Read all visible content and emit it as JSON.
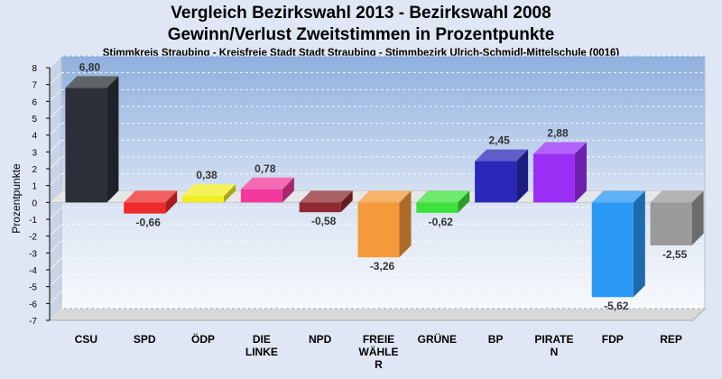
{
  "chart_data": {
    "type": "bar",
    "title": "Vergleich Bezirkswahl 2013 - Bezirkswahl 2008",
    "subtitle": "Gewinn/Verlust Zweitstimmen in Prozentpunkte",
    "caption": "Stimmkreis Straubing - Kreisfreie Stadt Stadt Straubing - Stimmbezirk Ulrich-Schmidl-Mittelschule (0016)",
    "xlabel": "",
    "ylabel": "Prozentpunkte",
    "ylim": [
      -7,
      8
    ],
    "yticks": [
      "8",
      "7",
      "6",
      "5",
      "4",
      "3",
      "2",
      "1",
      "0",
      "-1",
      "-2",
      "-3",
      "-4",
      "-5",
      "-6",
      "-7"
    ],
    "grid": true,
    "categories": [
      [
        "CSU"
      ],
      [
        "SPD"
      ],
      [
        "ÖDP"
      ],
      [
        "DIE",
        "LINKE"
      ],
      [
        "NPD"
      ],
      [
        "FREIE",
        "WÄHLE",
        "R"
      ],
      [
        "GRÜNE"
      ],
      [
        "BP"
      ],
      [
        "PIRATE",
        "N"
      ],
      [
        "FDP"
      ],
      [
        "REP"
      ]
    ],
    "values": [
      6.8,
      -0.66,
      0.38,
      0.78,
      -0.58,
      -3.26,
      -0.62,
      2.45,
      2.88,
      -5.62,
      -2.55
    ],
    "labels": [
      "6,80",
      "-0,66",
      "0,38",
      "0,78",
      "-0,58",
      "-3,26",
      "-0,62",
      "2,45",
      "2,88",
      "-5,62",
      "-2,55"
    ],
    "colors": [
      "#2b2f38",
      "#ee2a2a",
      "#f2ee22",
      "#f2389a",
      "#8e2a30",
      "#f59a3a",
      "#3ce23a",
      "#2a28b8",
      "#9a2ef5",
      "#2a98f5",
      "#9a9a9a"
    ]
  }
}
